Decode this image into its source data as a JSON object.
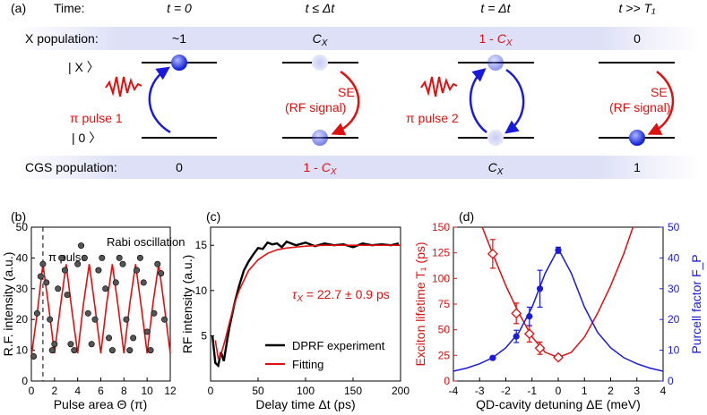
{
  "panel_a": {
    "label": "(a)",
    "time_label": "Time:",
    "times": [
      "t = 0",
      "t ≤ Δt",
      "t  = Δt",
      "t >> T₁"
    ],
    "x_population_label": "X population:",
    "x_population_values": [
      "~1",
      "C_X",
      "1 - C_X",
      "0"
    ],
    "cgs_population_label": "CGS population:",
    "cgs_population_values": [
      "0",
      "1 - C_X",
      "C_X",
      "1"
    ],
    "state_x": "| X 〉",
    "state_0": "| 0 〉",
    "pulse1": "π pulse 1",
    "pulse2": "π pulse 2",
    "se_label": "SE",
    "rf_signal": "(RF signal)",
    "colors": {
      "red": "#e01010",
      "blue": "#1a1adc",
      "band": "#dde0f6"
    }
  },
  "chart_data": [
    {
      "type": "scatter",
      "panel": "(b)",
      "title": "Rabi oscillation",
      "annotation": "π pulse",
      "xlabel": "Pulse area Θ (π)",
      "ylabel": "R.F. intensity (a.u.)",
      "xlim": [
        0,
        12
      ],
      "ylim": [
        0,
        50
      ],
      "xticks": [
        0,
        2,
        4,
        6,
        8,
        10,
        12
      ],
      "yticks": [
        0,
        10,
        20,
        30,
        40,
        50
      ],
      "fit_color": "#e01010",
      "series": [
        {
          "name": "data",
          "x": [
            0.2,
            0.5,
            0.8,
            1.0,
            1.3,
            1.6,
            1.8,
            2.0,
            2.3,
            2.6,
            2.9,
            3.1,
            3.4,
            3.7,
            4.0,
            4.3,
            4.6,
            4.9,
            5.2,
            5.5,
            5.8,
            6.1,
            6.4,
            6.7,
            7.0,
            7.3,
            7.6,
            7.9,
            8.2,
            8.5,
            8.8,
            9.1,
            9.4,
            9.7,
            10.0,
            10.3,
            10.6,
            10.9,
            11.2,
            11.5
          ],
          "y": [
            8,
            22,
            34,
            38,
            32,
            20,
            10,
            12,
            30,
            40,
            36,
            28,
            12,
            10,
            38,
            44,
            40,
            22,
            12,
            20,
            36,
            40,
            30,
            14,
            10,
            32,
            40,
            38,
            20,
            10,
            14,
            36,
            40,
            32,
            16,
            10,
            22,
            38,
            35,
            20
          ]
        },
        {
          "name": "fit",
          "x": [
            0.0,
            0.5,
            1.0,
            1.5,
            2.0,
            2.5,
            3.0,
            3.5,
            4.0,
            4.5,
            5.0,
            5.5,
            6.0,
            6.5,
            7.0,
            7.5,
            8.0,
            8.5,
            9.0,
            9.5,
            10.0,
            10.5,
            11.0,
            11.5,
            12.0
          ],
          "y": [
            8,
            22,
            38,
            24,
            9,
            24,
            38,
            23,
            9,
            25,
            38,
            24,
            9,
            25,
            38,
            24,
            9,
            25,
            38,
            24,
            9,
            25,
            38,
            24,
            9
          ]
        }
      ]
    },
    {
      "type": "line",
      "panel": "(c)",
      "xlabel": "Delay time Δt (ps)",
      "ylabel": "RF intensity (a.u.)",
      "xlim": [
        0,
        200
      ],
      "ylim": [
        0,
        17
      ],
      "xticks": [
        0,
        50,
        100,
        150,
        200
      ],
      "yticks": [
        5,
        10,
        15
      ],
      "annotation": "τ_X = 22.7 ± 0.9 ps",
      "legend": [
        "DPRF experiment",
        "Fitting"
      ],
      "series": [
        {
          "name": "DPRF experiment",
          "color": "#000000",
          "x": [
            2,
            5,
            8,
            11,
            14,
            17,
            20,
            25,
            30,
            35,
            40,
            45,
            50,
            55,
            60,
            65,
            70,
            75,
            80,
            90,
            100,
            110,
            120,
            130,
            140,
            150,
            160,
            170,
            180,
            190,
            198
          ],
          "y": [
            5,
            2,
            1.7,
            3.2,
            2.2,
            4.2,
            6,
            8.5,
            10.5,
            12.2,
            13.2,
            14,
            14.7,
            14.6,
            15.3,
            15.1,
            15.2,
            14.8,
            15.4,
            15.0,
            15.3,
            14.9,
            15.2,
            15.0,
            15.1,
            14.8,
            15.2,
            15.0,
            15.1,
            15.0,
            15.2
          ]
        },
        {
          "name": "Fitting",
          "color": "#e01010",
          "x": [
            5,
            8,
            10,
            15,
            20,
            25,
            30,
            40,
            50,
            60,
            70,
            80,
            100,
            120,
            150,
            200
          ],
          "y": [
            4.5,
            2.5,
            2.6,
            4.4,
            6.5,
            8.5,
            10.0,
            12.2,
            13.4,
            14.1,
            14.5,
            14.7,
            14.9,
            15.0,
            15.0,
            15.0
          ]
        }
      ]
    },
    {
      "type": "scatter",
      "panel": "(d)",
      "xlabel": "QD-cavity detuning ΔE (meV)",
      "ylabel_left": "Exciton lifetime T₁ (ps)",
      "ylabel_right": "Purcell factor F_P",
      "xlim": [
        -4,
        4
      ],
      "ylim_left": [
        0,
        150
      ],
      "ylim_right": [
        0,
        50
      ],
      "xticks": [
        -4,
        -3,
        -2,
        -1,
        0,
        1,
        2,
        3,
        4
      ],
      "yticks_left": [
        0,
        25,
        50,
        75,
        100,
        125,
        150
      ],
      "yticks_right": [
        0,
        10,
        20,
        30,
        40,
        50
      ],
      "series": [
        {
          "name": "lifetime",
          "axis": "left",
          "color": "#e01010",
          "marker": "diamond",
          "x": [
            -2.5,
            -1.6,
            -1.1,
            -0.7,
            0.0
          ],
          "y": [
            124,
            66,
            46,
            32,
            23
          ],
          "err": [
            14,
            10,
            8,
            6,
            2
          ]
        },
        {
          "name": "lifetime fit",
          "axis": "left",
          "color": "#e01010",
          "x": [
            -2.9,
            -2.5,
            -2.0,
            -1.5,
            -1.0,
            -0.5,
            0.0,
            0.5,
            1.0,
            1.5,
            2.0,
            2.5,
            2.85
          ],
          "y": [
            150,
            124,
            93,
            66,
            43,
            28,
            23,
            28,
            43,
            66,
            93,
            124,
            150
          ]
        },
        {
          "name": "Purcell",
          "axis": "right",
          "color": "#1a1adc",
          "marker": "circle",
          "x": [
            -2.5,
            -1.6,
            -1.1,
            -0.7,
            0.0
          ],
          "y": [
            7.5,
            14.5,
            21,
            30,
            42.5
          ],
          "err": [
            0.5,
            2,
            3,
            6,
            1
          ]
        },
        {
          "name": "Purcell fit",
          "axis": "right",
          "color": "#1a1adc",
          "x": [
            -4,
            -3.5,
            -3,
            -2.5,
            -2,
            -1.5,
            -1,
            -0.5,
            0,
            0.5,
            1,
            1.5,
            2,
            2.5,
            3,
            3.5,
            4
          ],
          "y": [
            3.2,
            4.2,
            5.6,
            7.6,
            10.8,
            15.8,
            24,
            35,
            43,
            35,
            24,
            15.8,
            10.8,
            7.6,
            5.6,
            4.2,
            3.2
          ]
        }
      ]
    }
  ]
}
